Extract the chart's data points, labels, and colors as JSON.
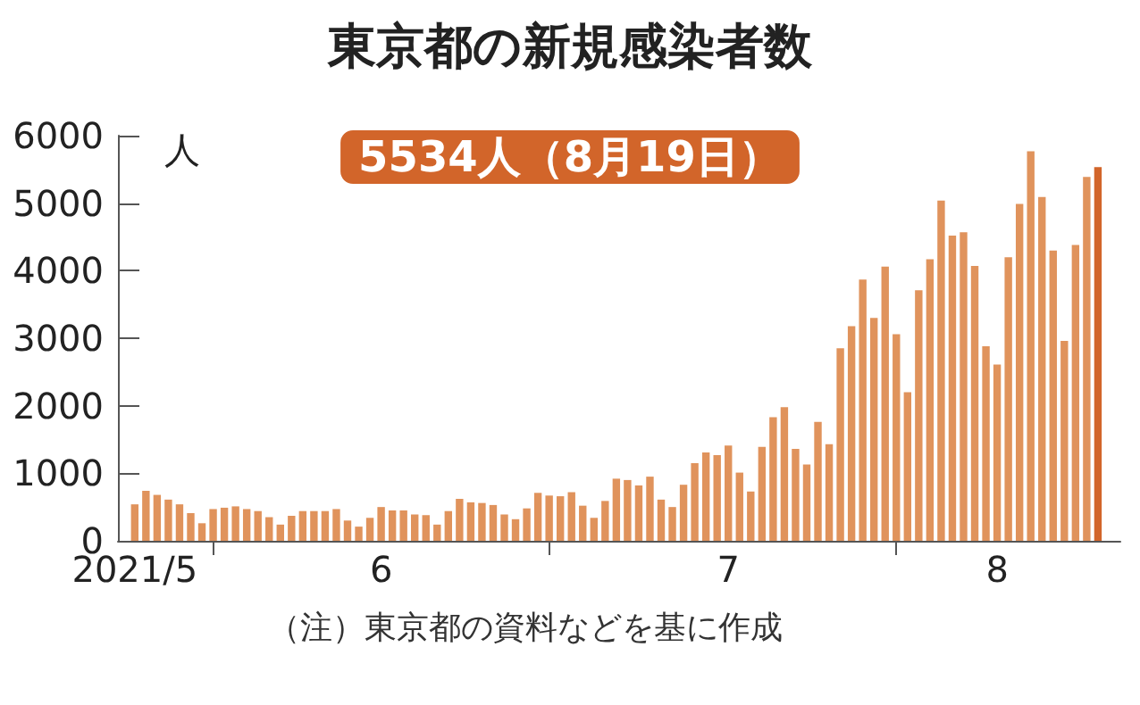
{
  "chart_data": {
    "type": "bar",
    "title": "東京都の新規感染者数",
    "ylabel": "人",
    "annotations": [
      "5534人（8月19日）",
      "（注）東京都の資料などを基に作成"
    ],
    "x": [
      "2021-05-25",
      "2021-05-26",
      "2021-05-27",
      "2021-05-28",
      "2021-05-29",
      "2021-05-30",
      "2021-05-31",
      "2021-06-01",
      "2021-06-02",
      "2021-06-03",
      "2021-06-04",
      "2021-06-05",
      "2021-06-06",
      "2021-06-07",
      "2021-06-08",
      "2021-06-09",
      "2021-06-10",
      "2021-06-11",
      "2021-06-12",
      "2021-06-13",
      "2021-06-14",
      "2021-06-15",
      "2021-06-16",
      "2021-06-17",
      "2021-06-18",
      "2021-06-19",
      "2021-06-20",
      "2021-06-21",
      "2021-06-22",
      "2021-06-23",
      "2021-06-24",
      "2021-06-25",
      "2021-06-26",
      "2021-06-27",
      "2021-06-28",
      "2021-06-29",
      "2021-06-30",
      "2021-07-01",
      "2021-07-02",
      "2021-07-03",
      "2021-07-04",
      "2021-07-05",
      "2021-07-06",
      "2021-07-07",
      "2021-07-08",
      "2021-07-09",
      "2021-07-10",
      "2021-07-11",
      "2021-07-12",
      "2021-07-13",
      "2021-07-14",
      "2021-07-15",
      "2021-07-16",
      "2021-07-17",
      "2021-07-18",
      "2021-07-19",
      "2021-07-20",
      "2021-07-21",
      "2021-07-22",
      "2021-07-23",
      "2021-07-24",
      "2021-07-25",
      "2021-07-26",
      "2021-07-27",
      "2021-07-28",
      "2021-07-29",
      "2021-07-30",
      "2021-07-31",
      "2021-08-01",
      "2021-08-02",
      "2021-08-03",
      "2021-08-04",
      "2021-08-05",
      "2021-08-06",
      "2021-08-07",
      "2021-08-08",
      "2021-08-09",
      "2021-08-10",
      "2021-08-11",
      "2021-08-12",
      "2021-08-13",
      "2021-08-14",
      "2021-08-15",
      "2021-08-16",
      "2021-08-17",
      "2021-08-18",
      "2021-08-19"
    ],
    "values": [
      540,
      740,
      680,
      610,
      540,
      410,
      260,
      470,
      490,
      510,
      470,
      440,
      350,
      240,
      370,
      440,
      440,
      440,
      470,
      300,
      210,
      340,
      500,
      450,
      450,
      390,
      380,
      240,
      440,
      620,
      570,
      560,
      530,
      390,
      320,
      480,
      710,
      670,
      660,
      720,
      520,
      340,
      590,
      920,
      900,
      820,
      950,
      610,
      500,
      830,
      1150,
      1310,
      1270,
      1410,
      1010,
      730,
      1390,
      1830,
      1980,
      1360,
      1130,
      1760,
      1430,
      2850,
      3180,
      3870,
      3300,
      4060,
      3060,
      2200,
      3710,
      4170,
      5040,
      4520,
      4570,
      4070,
      2880,
      2610,
      4200,
      4990,
      5770,
      5090,
      4300,
      2960,
      4380,
      5390,
      5534
    ],
    "colors": [
      "#e0935c",
      "#e0935c",
      "#e0935c",
      "#e0935c",
      "#e0935c",
      "#e0935c",
      "#e0935c",
      "#e0935c",
      "#e0935c",
      "#e0935c",
      "#e0935c",
      "#e0935c",
      "#e0935c",
      "#e0935c",
      "#e0935c",
      "#e0935c",
      "#e0935c",
      "#e0935c",
      "#e0935c",
      "#e0935c",
      "#e0935c",
      "#e0935c",
      "#e0935c",
      "#e0935c",
      "#e0935c",
      "#e0935c",
      "#e0935c",
      "#e0935c",
      "#e0935c",
      "#e0935c",
      "#e0935c",
      "#e0935c",
      "#e0935c",
      "#e0935c",
      "#e0935c",
      "#e0935c",
      "#e0935c",
      "#e0935c",
      "#e0935c",
      "#e0935c",
      "#e0935c",
      "#e0935c",
      "#e0935c",
      "#e0935c",
      "#e0935c",
      "#e0935c",
      "#e0935c",
      "#e0935c",
      "#e0935c",
      "#e0935c",
      "#e0935c",
      "#e0935c",
      "#e0935c",
      "#e0935c",
      "#e0935c",
      "#e0935c",
      "#e0935c",
      "#e0935c",
      "#e0935c",
      "#e0935c",
      "#e0935c",
      "#e0935c",
      "#e0935c",
      "#e0935c",
      "#e0935c",
      "#e0935c",
      "#e0935c",
      "#e0935c",
      "#e0935c",
      "#e0935c",
      "#e0935c",
      "#e0935c",
      "#e0935c",
      "#e0935c",
      "#e0935c",
      "#e0935c",
      "#e0935c",
      "#e0935c",
      "#e0935c",
      "#e0935c",
      "#e0935c",
      "#e0935c",
      "#e0935c",
      "#e0935c",
      "#e0935c",
      "#e0935c",
      "#d2652a"
    ],
    "xlim": [
      "2021-05-23T12:00",
      "2021-08-21T00:00"
    ],
    "xticks": [
      {
        "value": "2021-05-25",
        "label": "2021/5"
      },
      {
        "value": "2021-06-01",
        "label": null
      },
      {
        "value": "2021-06-16",
        "label": "6"
      },
      {
        "value": "2021-07-01",
        "label": null
      },
      {
        "value": "2021-07-17",
        "label": "7"
      },
      {
        "value": "2021-08-01",
        "label": null
      },
      {
        "value": "2021-08-10",
        "label": "8"
      }
    ],
    "ylim": [
      0,
      6000
    ],
    "yticks": [
      0,
      1000,
      2000,
      3000,
      4000,
      5000,
      6000
    ],
    "grid": false
  }
}
